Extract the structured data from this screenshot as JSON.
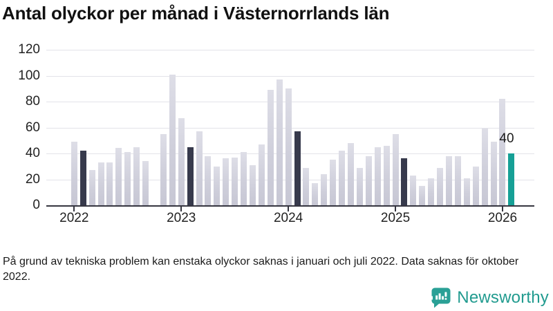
{
  "title": "Antal olyckor per månad i Västernorrlands län",
  "footnote": "På grund av tekniska problem kan enstaka olyckor saknas i januari och juli 2022. Data saknas för oktober 2022.",
  "branding": {
    "name": "Newsworthy",
    "teal": "#219b8f"
  },
  "chart_data": {
    "type": "bar",
    "title": "Antal olyckor per månad i Västernorrlands län",
    "xlabel": "",
    "ylabel": "",
    "ylim": [
      0,
      120
    ],
    "yticks": [
      0,
      20,
      40,
      60,
      80,
      100,
      120
    ],
    "xticks": [
      "2022",
      "2023",
      "2024",
      "2025",
      "2026"
    ],
    "grid": true,
    "legend": "none",
    "colors": {
      "bar_default": "#d2d2dd",
      "bar_dark": "#373a4c",
      "bar_current": "#16a096",
      "grid": "#e3e3e9",
      "axis": "#35353f"
    },
    "series": [
      {
        "name": "Olyckor per månad",
        "points": [
          {
            "month": "2022-01",
            "value": 49
          },
          {
            "month": "2022-02",
            "value": 42,
            "emphasis": "dark"
          },
          {
            "month": "2022-03",
            "value": 27
          },
          {
            "month": "2022-04",
            "value": 33
          },
          {
            "month": "2022-05",
            "value": 33
          },
          {
            "month": "2022-06",
            "value": 44
          },
          {
            "month": "2022-07",
            "value": 41
          },
          {
            "month": "2022-08",
            "value": 45
          },
          {
            "month": "2022-09",
            "value": 34
          },
          {
            "month": "2022-10",
            "value": null,
            "missing": true
          },
          {
            "month": "2022-11",
            "value": 55
          },
          {
            "month": "2022-12",
            "value": 101
          },
          {
            "month": "2023-01",
            "value": 67
          },
          {
            "month": "2023-02",
            "value": 45,
            "emphasis": "dark"
          },
          {
            "month": "2023-03",
            "value": 57
          },
          {
            "month": "2023-04",
            "value": 38
          },
          {
            "month": "2023-05",
            "value": 30
          },
          {
            "month": "2023-06",
            "value": 36
          },
          {
            "month": "2023-07",
            "value": 37
          },
          {
            "month": "2023-08",
            "value": 41
          },
          {
            "month": "2023-09",
            "value": 31
          },
          {
            "month": "2023-10",
            "value": 47
          },
          {
            "month": "2023-11",
            "value": 89
          },
          {
            "month": "2023-12",
            "value": 97
          },
          {
            "month": "2024-01",
            "value": 90
          },
          {
            "month": "2024-02",
            "value": 57,
            "emphasis": "dark"
          },
          {
            "month": "2024-03",
            "value": 29
          },
          {
            "month": "2024-04",
            "value": 17
          },
          {
            "month": "2024-05",
            "value": 24
          },
          {
            "month": "2024-06",
            "value": 35
          },
          {
            "month": "2024-07",
            "value": 42
          },
          {
            "month": "2024-08",
            "value": 48
          },
          {
            "month": "2024-09",
            "value": 29
          },
          {
            "month": "2024-10",
            "value": 38
          },
          {
            "month": "2024-11",
            "value": 45
          },
          {
            "month": "2024-12",
            "value": 46
          },
          {
            "month": "2025-01",
            "value": 55
          },
          {
            "month": "2025-02",
            "value": 36,
            "emphasis": "dark"
          },
          {
            "month": "2025-03",
            "value": 23
          },
          {
            "month": "2025-04",
            "value": 15
          },
          {
            "month": "2025-05",
            "value": 21
          },
          {
            "month": "2025-06",
            "value": 29
          },
          {
            "month": "2025-07",
            "value": 38
          },
          {
            "month": "2025-08",
            "value": 38
          },
          {
            "month": "2025-09",
            "value": 21
          },
          {
            "month": "2025-10",
            "value": 30
          },
          {
            "month": "2025-11",
            "value": 59
          },
          {
            "month": "2025-12",
            "value": 49
          },
          {
            "month": "2026-01",
            "value": 82
          },
          {
            "month": "2026-02",
            "value": 40,
            "emphasis": "current",
            "label": "40"
          }
        ]
      }
    ]
  }
}
